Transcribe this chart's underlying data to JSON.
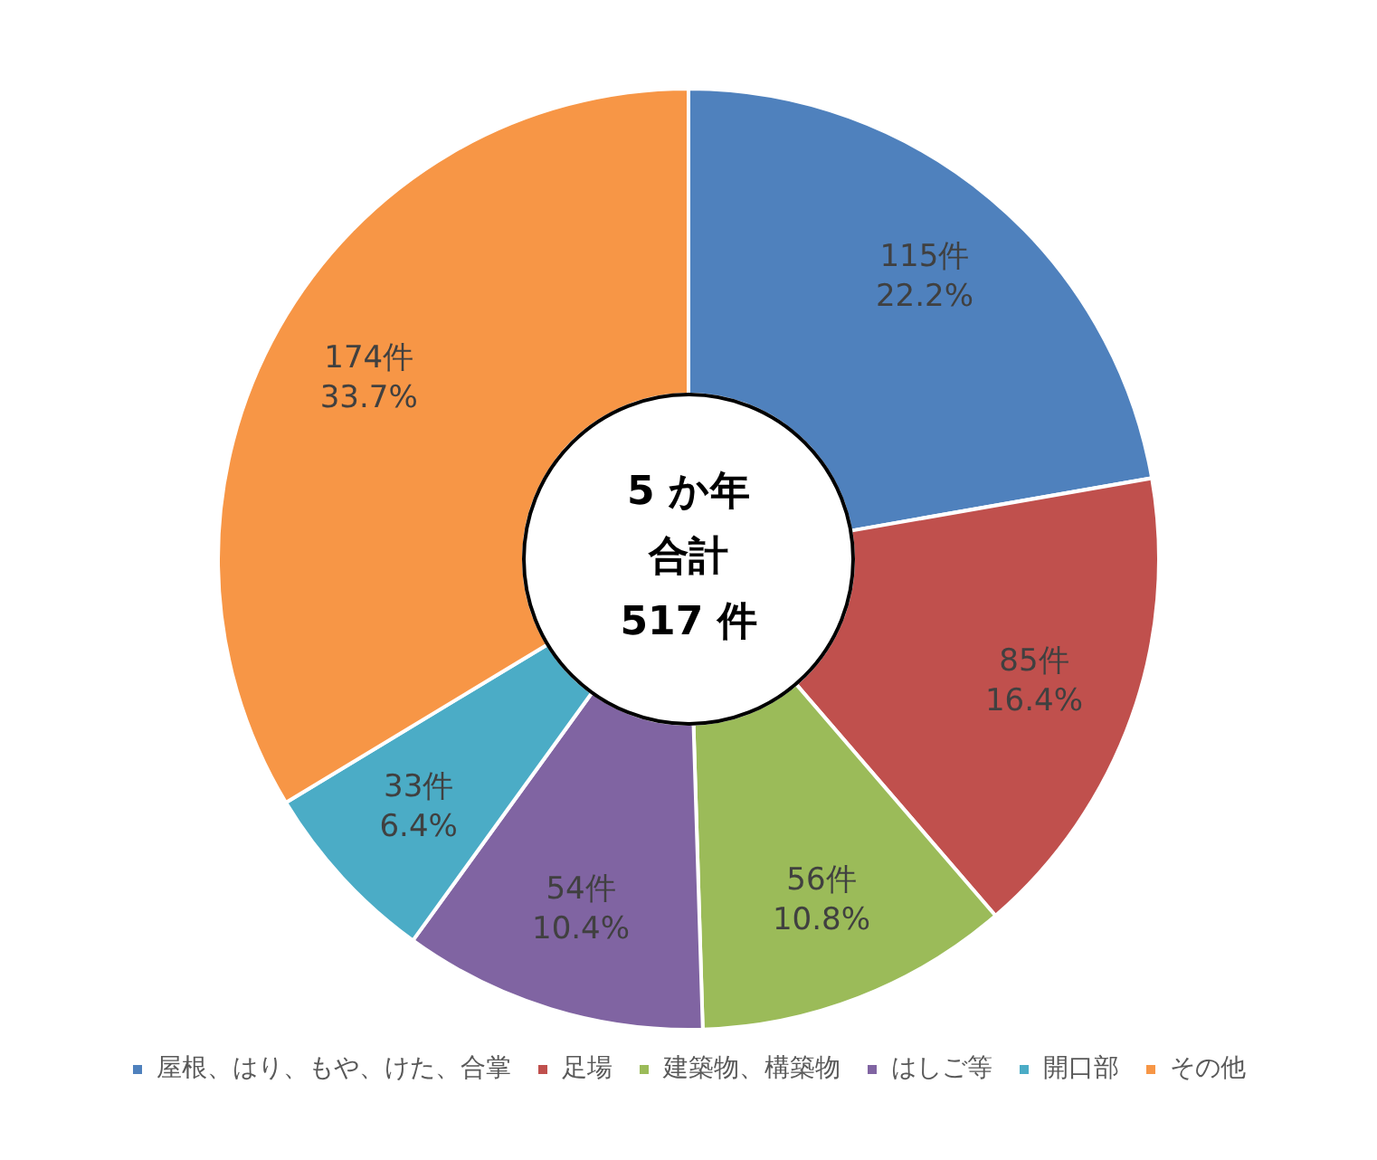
{
  "chart_data": {
    "type": "donut",
    "categories": [
      "屋根、はり、もや、けた、合掌",
      "足場",
      "建築物、構築物",
      "はしご等",
      "開口部",
      "その他"
    ],
    "values": [
      115,
      85,
      56,
      54,
      33,
      174
    ],
    "colors": [
      "#4f81bd",
      "#c0504d",
      "#9bbb59",
      "#8064a2",
      "#4bacc6",
      "#f79646"
    ],
    "value_labels": [
      "115件\n22.2%",
      "85件\n16.4%",
      "56件\n10.8%",
      "54件\n10.4%",
      "33件\n6.4%",
      "174件\n33.7%"
    ],
    "annotations": [
      "5 か年",
      "合計",
      "517 件"
    ],
    "legend": "bottom"
  }
}
